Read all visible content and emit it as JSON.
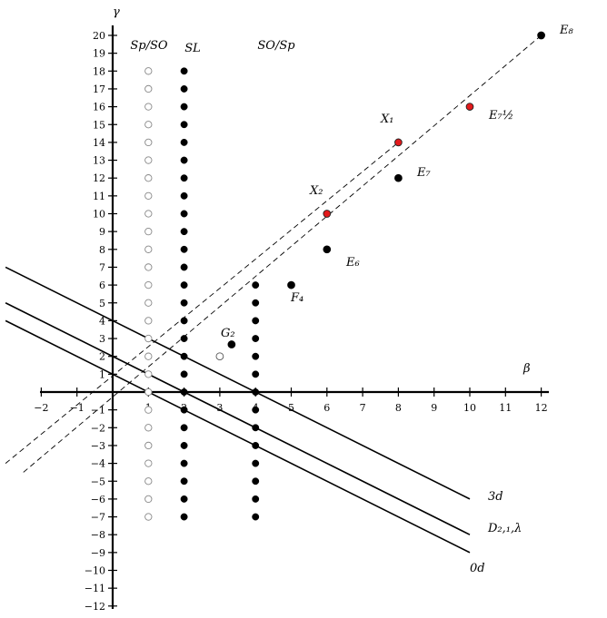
{
  "axes": {
    "x_label": "β",
    "y_label": "γ",
    "x_ticks": [
      -2,
      -1,
      1,
      2,
      3,
      4,
      5,
      6,
      7,
      8,
      9,
      10,
      11,
      12
    ],
    "y_ticks_pos": [
      1,
      2,
      3,
      4,
      5,
      6,
      7,
      8,
      9,
      10,
      11,
      12,
      13,
      14,
      15,
      16,
      17,
      18,
      19,
      20
    ],
    "y_ticks_neg": [
      -1,
      -2,
      -3,
      -4,
      -5,
      -6,
      -7,
      -8,
      -9,
      -10,
      -11,
      -12
    ]
  },
  "column_labels": [
    {
      "text": "Sp/SO",
      "x": 1
    },
    {
      "text": "SL",
      "x": 2
    },
    {
      "text": "SO/Sp",
      "x": 4
    }
  ],
  "columns": [
    {
      "name": "sp-so",
      "x": 1,
      "ymin": -7,
      "ymax": 18,
      "fill": "open"
    },
    {
      "name": "sl",
      "x": 2,
      "ymin": -7,
      "ymax": 18,
      "fill": "filled"
    },
    {
      "name": "so-sp",
      "x": 4,
      "ymin": -7,
      "ymax": 6,
      "fill": "filled"
    }
  ],
  "points": [
    {
      "label": "E₈",
      "x": 12,
      "y": 20,
      "color": "black"
    },
    {
      "label": "E₇½",
      "x": 10,
      "y": 16,
      "color": "red"
    },
    {
      "label": "X₁",
      "x": 8,
      "y": 14,
      "color": "red"
    },
    {
      "label": "E₇",
      "x": 8,
      "y": 12,
      "color": "black"
    },
    {
      "label": "X₂",
      "x": 6,
      "y": 10,
      "color": "red"
    },
    {
      "label": "E₆",
      "x": 6,
      "y": 8,
      "color": "black"
    },
    {
      "label": "F₄",
      "x": 5,
      "y": 6,
      "color": "black"
    },
    {
      "label": "G₂",
      "x": 3.33,
      "y": 2.67,
      "color": "black"
    },
    {
      "label": "",
      "x": 3,
      "y": 2,
      "color": "open"
    }
  ],
  "dashed_lines": [
    {
      "name": "upper",
      "from": [
        -3,
        -4
      ],
      "to": [
        8,
        14
      ]
    },
    {
      "name": "lower",
      "from": [
        -2.5,
        -4.5
      ],
      "to": [
        12,
        20
      ]
    }
  ],
  "solid_lines": [
    {
      "label": "3d",
      "from": [
        -3,
        7
      ],
      "to": [
        10,
        -6
      ]
    },
    {
      "label": "D₂,₁,λ",
      "from": [
        -3,
        5
      ],
      "to": [
        10,
        -8
      ]
    },
    {
      "label": "0d",
      "from": [
        -3,
        4
      ],
      "to": [
        10,
        -9
      ]
    }
  ],
  "colors": {
    "red": "#e31a1c",
    "black": "#000000"
  }
}
